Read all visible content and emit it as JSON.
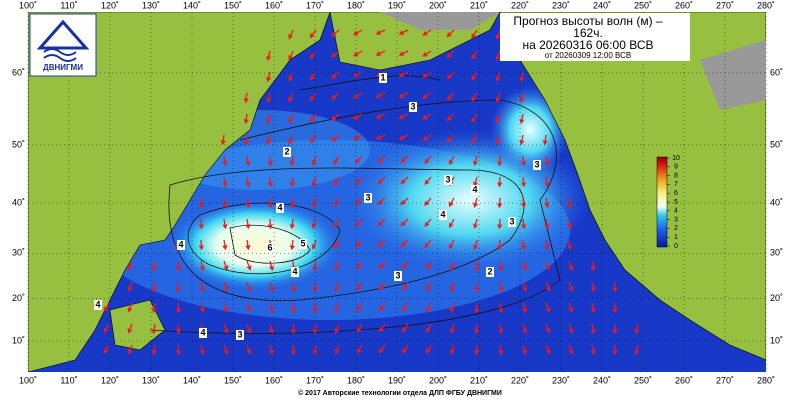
{
  "header": {
    "title_lines": [
      "Прогноз высоты волн (м) –",
      "162ч.",
      "на 20260316 06:00 ВСВ"
    ],
    "issued": "от 20260309 12:00 ВСВ",
    "logo": "ДВНИГМИ"
  },
  "map": {
    "lon_ticks": [
      {
        "value": 100,
        "label": "100˚"
      },
      {
        "value": 110,
        "label": "110˚"
      },
      {
        "value": 120,
        "label": "120˚"
      },
      {
        "value": 130,
        "label": "130˚"
      },
      {
        "value": 140,
        "label": "140˚"
      },
      {
        "value": 150,
        "label": "150˚"
      },
      {
        "value": 160,
        "label": "160˚"
      },
      {
        "value": 170,
        "label": "170˚"
      },
      {
        "value": 180,
        "label": "180˚"
      },
      {
        "value": 190,
        "label": "190˚"
      },
      {
        "value": 200,
        "label": "200˚"
      },
      {
        "value": 210,
        "label": "210˚"
      },
      {
        "value": 220,
        "label": "220˚"
      },
      {
        "value": 230,
        "label": "230˚"
      },
      {
        "value": 240,
        "label": "240˚"
      },
      {
        "value": 250,
        "label": "250˚"
      },
      {
        "value": 260,
        "label": "260˚"
      },
      {
        "value": 270,
        "label": "270˚"
      },
      {
        "value": 280,
        "label": "280˚"
      }
    ],
    "lat_ticks": [
      {
        "value": 10,
        "label": "10˚"
      },
      {
        "value": 20,
        "label": "20˚"
      },
      {
        "value": 30,
        "label": "30˚"
      },
      {
        "value": 40,
        "label": "40˚"
      },
      {
        "value": 50,
        "label": "50˚"
      },
      {
        "value": 60,
        "label": "60˚"
      }
    ],
    "colorbar_ticks": [
      0,
      1,
      2,
      3,
      4,
      5,
      6,
      7,
      8,
      9,
      10
    ],
    "contour_labels": [
      1,
      3,
      2,
      3,
      3,
      4,
      4,
      4,
      5,
      6,
      4,
      3,
      2,
      3,
      4,
      4,
      3,
      4,
      3
    ]
  },
  "footer": {
    "copyright": "© 2017 Авторские технологии отдела ДЛП ФГБУ ДВНИГМИ"
  }
}
